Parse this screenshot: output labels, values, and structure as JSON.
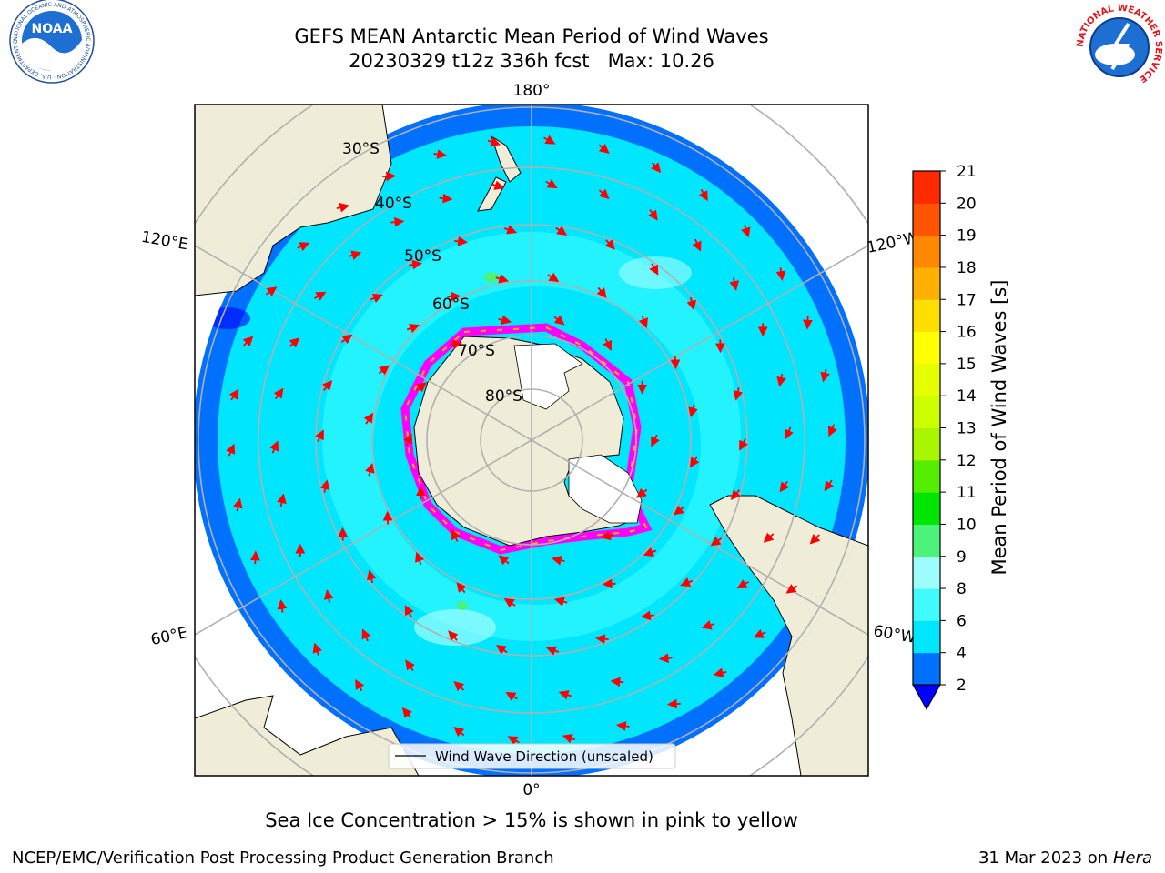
{
  "header": {
    "title_line1": "GEFS MEAN Antarctic Mean Period of Wind Waves",
    "title_line2": "20230329 t12z 336h fcst   Max: 10.26"
  },
  "logos": {
    "left": "NOAA",
    "left_ring_text": "NATIONAL OCEANIC AND ATMOSPHERIC ADMINISTRATION · U.S. DEPARTMENT OF COMMERCE",
    "right_ring_text": "NATIONAL WEATHER SERVICE"
  },
  "map": {
    "projection": "south-polar-stereographic",
    "longitude_labels": {
      "top": "180°",
      "bottom": "0°",
      "upper_left": "120°E",
      "upper_right": "120°W",
      "lower_left": "60°E",
      "lower_right": "60°W"
    },
    "latitude_labels": [
      "30°S",
      "40°S",
      "50°S",
      "60°S",
      "70°S",
      "80°S"
    ],
    "legend_label": "Wind Wave Direction (unscaled)",
    "arrow_color": "#ff0000",
    "land_color": "#efedd8",
    "ice_colors": [
      "#ff00ff",
      "#ffff00"
    ]
  },
  "colorbar": {
    "title": "Mean Period of Wind Waves [s]",
    "tick_labels": [
      "2",
      "4",
      "6",
      "8",
      "9",
      "10",
      "11",
      "12",
      "13",
      "14",
      "15",
      "16",
      "17",
      "18",
      "19",
      "20",
      "21"
    ],
    "colors": [
      "#0070ff",
      "#00e6ff",
      "#40fbff",
      "#a0fdfe",
      "#4cf27a",
      "#00e600",
      "#55ee00",
      "#aaf500",
      "#ccff00",
      "#e6ff00",
      "#ffff00",
      "#ffdf00",
      "#ffb000",
      "#ff8800",
      "#ff5500",
      "#ff2a00"
    ],
    "under_color": "#0000ff"
  },
  "footer": {
    "caption": "Sea Ice Concentration > 15% is shown in pink to yellow",
    "credit_left": "NCEP/EMC/Verification Post Processing Product Generation Branch",
    "credit_date": "31 Mar 2023 on",
    "credit_machine": "Hera"
  }
}
